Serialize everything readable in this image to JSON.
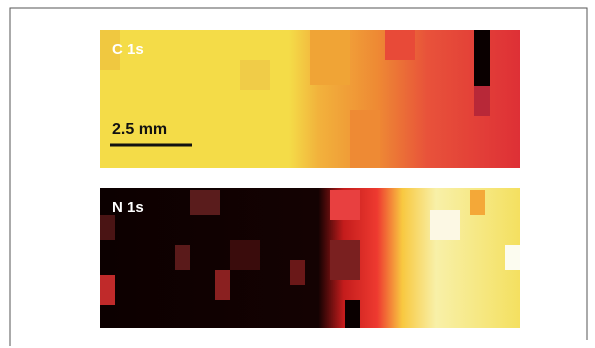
{
  "panels": [
    {
      "label": "C 1s",
      "scale_bar": "2.5 mm"
    },
    {
      "label": "N 1s"
    }
  ]
}
